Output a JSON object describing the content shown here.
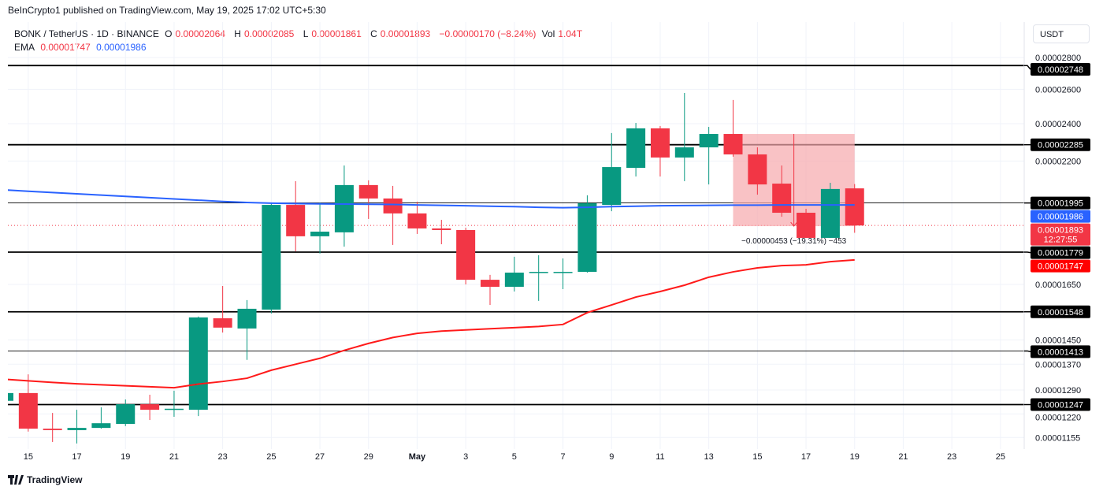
{
  "header": {
    "published": "BeInCrypto1 published on TradingView.com, May 19, 2025 17:02 UTC+5:30"
  },
  "legend": {
    "symbol": "BONK / TetherUS · 1D · BINANCE",
    "o_label": "O",
    "o": "0.00002064",
    "h_label": "H",
    "h": "0.00002085",
    "l_label": "L",
    "l": "0.00001861",
    "c_label": "C",
    "c": "0.00001893",
    "change": "−0.00000170 (−8.24%)",
    "vol_label": "Vol",
    "vol": "1.04T",
    "ema_label": "EMA",
    "ema1": "0.00001747",
    "ema2": "0.00001986"
  },
  "axis": {
    "currency": "USDT"
  },
  "footer": {
    "brand": "TradingView"
  },
  "colors": {
    "up": "#089981",
    "down": "#f23645",
    "ema_fast": "#ff1a1a",
    "ema_slow": "#2962ff",
    "level": "#000000",
    "measure": "#f7a8ad"
  },
  "chart_data": {
    "type": "candlestick",
    "y_scale": "log",
    "grid": true,
    "y_ticks": [
      "0.00002800",
      "0.00002600",
      "0.00002400",
      "0.00002200",
      "0.00001650",
      "0.00001450",
      "0.00001370",
      "0.00001290",
      "0.00001220",
      "0.00001155"
    ],
    "x_ticks": [
      {
        "date": "2025-04-15",
        "label": "15"
      },
      {
        "date": "2025-04-17",
        "label": "17"
      },
      {
        "date": "2025-04-19",
        "label": "19"
      },
      {
        "date": "2025-04-21",
        "label": "21"
      },
      {
        "date": "2025-04-23",
        "label": "23"
      },
      {
        "date": "2025-04-25",
        "label": "25"
      },
      {
        "date": "2025-04-27",
        "label": "27"
      },
      {
        "date": "2025-04-29",
        "label": "29"
      },
      {
        "date": "2025-05-01",
        "label": "May"
      },
      {
        "date": "2025-05-03",
        "label": "3"
      },
      {
        "date": "2025-05-05",
        "label": "5"
      },
      {
        "date": "2025-05-07",
        "label": "7"
      },
      {
        "date": "2025-05-09",
        "label": "9"
      },
      {
        "date": "2025-05-11",
        "label": "11"
      },
      {
        "date": "2025-05-13",
        "label": "13"
      },
      {
        "date": "2025-05-15",
        "label": "15"
      },
      {
        "date": "2025-05-17",
        "label": "17"
      },
      {
        "date": "2025-05-19",
        "label": "19"
      },
      {
        "date": "2025-05-21",
        "label": "21"
      },
      {
        "date": "2025-05-23",
        "label": "23"
      },
      {
        "date": "2025-05-25",
        "label": "25"
      }
    ],
    "first_date": "2025-04-14",
    "ohlc": [
      [
        1.258e-05,
        1.286e-05,
        1.253e-05,
        1.281e-05
      ],
      [
        1.281e-05,
        1.338e-05,
        1.171e-05,
        1.179e-05
      ],
      [
        1.179e-05,
        1.223e-05,
        1.143e-05,
        1.175e-05
      ],
      [
        1.175e-05,
        1.232e-05,
        1.139e-05,
        1.181e-05
      ],
      [
        1.181e-05,
        1.239e-05,
        1.179e-05,
        1.194e-05
      ],
      [
        1.192e-05,
        1.262e-05,
        1.186e-05,
        1.248e-05
      ],
      [
        1.248e-05,
        1.276e-05,
        1.203e-05,
        1.232e-05
      ],
      [
        1.232e-05,
        1.288e-05,
        1.212e-05,
        1.235e-05
      ],
      [
        1.232e-05,
        1.531e-05,
        1.214e-05,
        1.528e-05
      ],
      [
        1.525e-05,
        1.644e-05,
        1.475e-05,
        1.492e-05
      ],
      [
        1.489e-05,
        1.591e-05,
        1.384e-05,
        1.559e-05
      ],
      [
        1.556e-05,
        1.997e-05,
        1.542e-05,
        1.986e-05
      ],
      [
        1.986e-05,
        2.099e-05,
        1.782e-05,
        1.846e-05
      ],
      [
        1.846e-05,
        1.997e-05,
        1.773e-05,
        1.866e-05
      ],
      [
        1.863e-05,
        2.177e-05,
        1.802e-05,
        2.08e-05
      ],
      [
        2.08e-05,
        2.103e-05,
        1.922e-05,
        2.016e-05
      ],
      [
        2.016e-05,
        2.076e-05,
        1.809e-05,
        1.947e-05
      ],
      [
        1.947e-05,
        2.001e-05,
        1.856e-05,
        1.88e-05
      ],
      [
        1.88e-05,
        1.918e-05,
        1.812e-05,
        1.873e-05
      ],
      [
        1.873e-05,
        1.883e-05,
        1.65e-05,
        1.668e-05
      ],
      [
        1.668e-05,
        1.687e-05,
        1.573e-05,
        1.641e-05
      ],
      [
        1.641e-05,
        1.76e-05,
        1.623e-05,
        1.696e-05
      ],
      [
        1.696e-05,
        1.766e-05,
        1.588e-05,
        1.699e-05
      ],
      [
        1.696e-05,
        1.753e-05,
        1.632e-05,
        1.699e-05
      ],
      [
        1.699e-05,
        2.031e-05,
        1.696e-05,
        1.994e-05
      ],
      [
        1.986e-05,
        2.348e-05,
        1.957e-05,
        2.169e-05
      ],
      [
        2.165e-05,
        2.404e-05,
        2.122e-05,
        2.374e-05
      ],
      [
        2.374e-05,
        2.387e-05,
        2.122e-05,
        2.218e-05
      ],
      [
        2.218e-05,
        2.578e-05,
        2.099e-05,
        2.271e-05
      ],
      [
        2.271e-05,
        2.382e-05,
        2.083e-05,
        2.343e-05
      ],
      [
        2.343e-05,
        2.536e-05,
        2.222e-05,
        2.234e-05
      ],
      [
        2.234e-05,
        2.271e-05,
        2.034e-05,
        2.083e-05
      ],
      [
        2.087e-05,
        2.177e-05,
        1.932e-05,
        1.95e-05
      ],
      [
        1.95e-05,
        1.968e-05,
        1.839e-05,
        1.839e-05
      ],
      [
        1.839e-05,
        2.091e-05,
        1.839e-05,
        2.061e-05
      ],
      [
        2.064e-05,
        2.085e-05,
        1.861e-05,
        1.893e-05
      ]
    ],
    "series": [
      {
        "color": "#ff1a1a",
        "values": [
          1.323e-05,
          1.318e-05,
          1.313e-05,
          1.309e-05,
          1.306e-05,
          1.303e-05,
          1.3e-05,
          1.297e-05,
          1.308e-05,
          1.316e-05,
          1.326e-05,
          1.351e-05,
          1.37e-05,
          1.389e-05,
          1.415e-05,
          1.438e-05,
          1.458e-05,
          1.472e-05,
          1.48e-05,
          1.484e-05,
          1.488e-05,
          1.492e-05,
          1.496e-05,
          1.503e-05,
          1.545e-05,
          1.573e-05,
          1.602e-05,
          1.623e-05,
          1.647e-05,
          1.678e-05,
          1.699e-05,
          1.715e-05,
          1.724e-05,
          1.727e-05,
          1.74e-05,
          1.747e-05
        ]
      },
      {
        "color": "#2962ff",
        "values": [
          2.057e-05,
          2.05e-05,
          2.044e-05,
          2.038e-05,
          2.032e-05,
          2.026e-05,
          2.02e-05,
          2.014e-05,
          2.008e-05,
          2.002e-05,
          1.997e-05,
          1.994e-05,
          1.992e-05,
          1.991e-05,
          1.99e-05,
          1.989e-05,
          1.988e-05,
          1.986e-05,
          1.984e-05,
          1.982e-05,
          1.98e-05,
          1.978e-05,
          1.975e-05,
          1.973e-05,
          1.975e-05,
          1.978e-05,
          1.98e-05,
          1.982e-05,
          1.983e-05,
          1.984e-05,
          1.985e-05,
          1.985e-05,
          1.986e-05,
          1.986e-05,
          1.986e-05,
          1.986e-05
        ]
      }
    ],
    "levels": [
      {
        "value": "0.00002748",
        "weight": "thick"
      },
      {
        "value": "0.00002285",
        "weight": "thick"
      },
      {
        "value": "0.00001995",
        "weight": "thin"
      },
      {
        "value": "0.00001779",
        "weight": "thick"
      },
      {
        "value": "0.00001548",
        "weight": "thick"
      },
      {
        "value": "0.00001413",
        "weight": "thin"
      },
      {
        "value": "0.00001247",
        "weight": "thick"
      }
    ],
    "price_tags": [
      {
        "value": "0.00001986",
        "sub": "",
        "color": "#2962ff"
      },
      {
        "value": "0.00001893",
        "sub": "12:27:55",
        "color": "#f23645"
      },
      {
        "value": "0.00001747",
        "sub": "",
        "color": "#ff0000"
      }
    ],
    "last_price": "0.00001893",
    "measure": {
      "from_date": "2025-05-14",
      "to_date": "2025-05-19",
      "top": "0.00002343",
      "bottom": "0.00001890",
      "label": "−0.00000453 (−19.31%) −453"
    }
  }
}
